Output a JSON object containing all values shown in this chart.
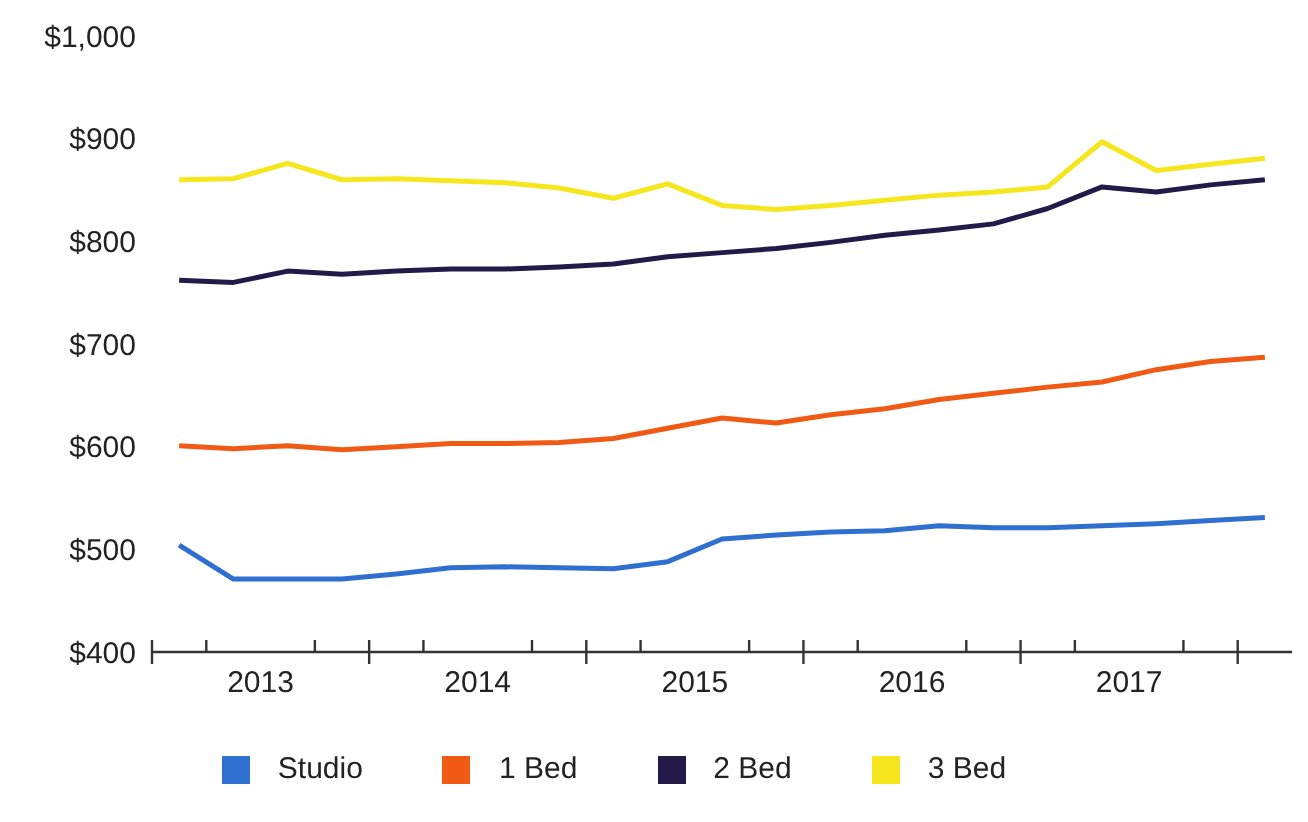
{
  "chart_data": {
    "type": "line",
    "x": [
      2013.125,
      2013.375,
      2013.625,
      2013.875,
      2014.125,
      2014.375,
      2014.625,
      2014.875,
      2015.125,
      2015.375,
      2015.625,
      2015.875,
      2016.125,
      2016.375,
      2016.625,
      2016.875,
      2017.125,
      2017.375,
      2017.625,
      2017.875,
      2018.125
    ],
    "series": [
      {
        "name": "Studio",
        "color": "#2f6fd0",
        "values": [
          504,
          471,
          471,
          471,
          476,
          482,
          483,
          482,
          481,
          488,
          510,
          514,
          517,
          518,
          523,
          521,
          521,
          523,
          525,
          528,
          531
        ]
      },
      {
        "name": "1 Bed",
        "color": "#f05a14",
        "values": [
          601,
          598,
          601,
          597,
          600,
          603,
          603,
          604,
          608,
          618,
          628,
          623,
          631,
          637,
          646,
          652,
          658,
          663,
          675,
          683,
          687
        ]
      },
      {
        "name": "2 Bed",
        "color": "#231a4a",
        "values": [
          762,
          760,
          771,
          768,
          771,
          773,
          773,
          775,
          778,
          785,
          789,
          793,
          799,
          806,
          811,
          817,
          832,
          853,
          848,
          855,
          860
        ]
      },
      {
        "name": "3 Bed",
        "color": "#f5e61e",
        "values": [
          860,
          861,
          876,
          860,
          861,
          859,
          857,
          852,
          842,
          856,
          835,
          831,
          835,
          840,
          845,
          848,
          853,
          897,
          869,
          875,
          881
        ]
      }
    ],
    "xlim": [
      2013,
      2018.25
    ],
    "xticks": [
      {
        "value": 2013,
        "label": null
      },
      {
        "value": 2013.25,
        "label": null
      },
      {
        "value": 2013.5,
        "label": "2013"
      },
      {
        "value": 2013.75,
        "label": null
      },
      {
        "value": 2014,
        "label": null
      },
      {
        "value": 2014.25,
        "label": null
      },
      {
        "value": 2014.5,
        "label": "2014"
      },
      {
        "value": 2014.75,
        "label": null
      },
      {
        "value": 2015,
        "label": null
      },
      {
        "value": 2015.25,
        "label": null
      },
      {
        "value": 2015.5,
        "label": "2015"
      },
      {
        "value": 2015.75,
        "label": null
      },
      {
        "value": 2016,
        "label": null
      },
      {
        "value": 2016.25,
        "label": null
      },
      {
        "value": 2016.5,
        "label": "2016"
      },
      {
        "value": 2016.75,
        "label": null
      },
      {
        "value": 2017,
        "label": null
      },
      {
        "value": 2017.25,
        "label": null
      },
      {
        "value": 2017.5,
        "label": "2017"
      },
      {
        "value": 2017.75,
        "label": null
      },
      {
        "value": 2018,
        "label": null
      }
    ],
    "ylim": [
      400,
      1000
    ],
    "yticks": [
      {
        "value": 400,
        "label": "$400"
      },
      {
        "value": 500,
        "label": "$500"
      },
      {
        "value": 600,
        "label": "$600"
      },
      {
        "value": 700,
        "label": "$700"
      },
      {
        "value": 800,
        "label": "$800"
      },
      {
        "value": 900,
        "label": "$900"
      },
      {
        "value": 1000,
        "label": "$1,000"
      }
    ],
    "grid": false,
    "legend": "bottom",
    "marker": "none",
    "line_style": "solid"
  }
}
